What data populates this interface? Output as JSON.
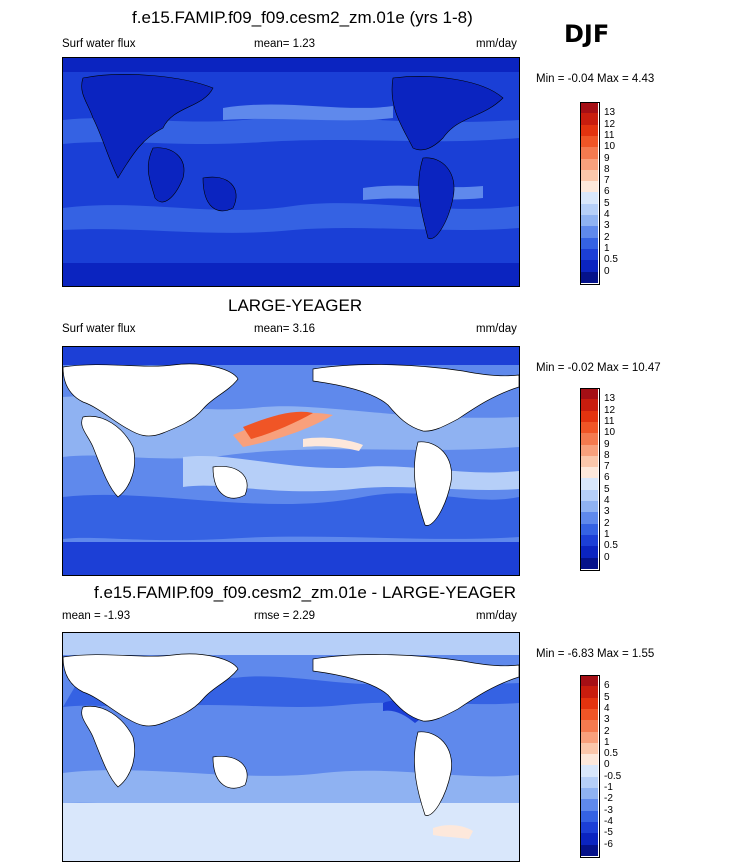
{
  "season": "DJF",
  "panel1": {
    "title": "f.e15.FAMIP.f09_f09.cesm2_zm.01e (yrs 1-8)",
    "left_label": "Surf water flux",
    "center_label": "mean=   1.23",
    "units": "mm/day",
    "minmax": "Min =  -0.04 Max =   4.43"
  },
  "panel2": {
    "title": "LARGE-YEAGER",
    "left_label": "Surf water flux",
    "center_label": "mean=   3.16",
    "units": "mm/day",
    "minmax": "Min =  -0.02 Max = 10.47"
  },
  "panel3": {
    "title": "f.e15.FAMIP.f09_f09.cesm2_zm.01e - LARGE-YEAGER",
    "left_label": "mean =  -1.93",
    "center_label": "rmse =   2.29",
    "units": "mm/day",
    "minmax": "Min =  -6.83 Max =   1.55"
  },
  "colorbar_abs": {
    "labels": [
      "13",
      "12",
      "11",
      "10",
      "9",
      "8",
      "7",
      "6",
      "5",
      "4",
      "3",
      "2",
      "1",
      "0.5",
      "0"
    ],
    "colors": [
      "#a50f15",
      "#c81d0e",
      "#e3330f",
      "#f05526",
      "#f47a4f",
      "#f8a07c",
      "#fbc7ab",
      "#fde8db",
      "#d9e7fb",
      "#b6cff8",
      "#8fb2f2",
      "#5f89ec",
      "#3562e3",
      "#1c3fd6",
      "#0b24c0",
      "#05128a"
    ]
  },
  "colorbar_diff": {
    "labels": [
      "6",
      "5",
      "4",
      "3",
      "2",
      "1",
      "0.5",
      "0",
      "-0.5",
      "-1",
      "-2",
      "-3",
      "-4",
      "-5",
      "-6"
    ],
    "colors": [
      "#a50f15",
      "#c81d0e",
      "#e3330f",
      "#f05526",
      "#f47a4f",
      "#f8a07c",
      "#fbc7ab",
      "#fde8db",
      "#d9e7fb",
      "#b6cff8",
      "#8fb2f2",
      "#5f89ec",
      "#3562e3",
      "#1c3fd6",
      "#0b24c0",
      "#05128a"
    ]
  }
}
